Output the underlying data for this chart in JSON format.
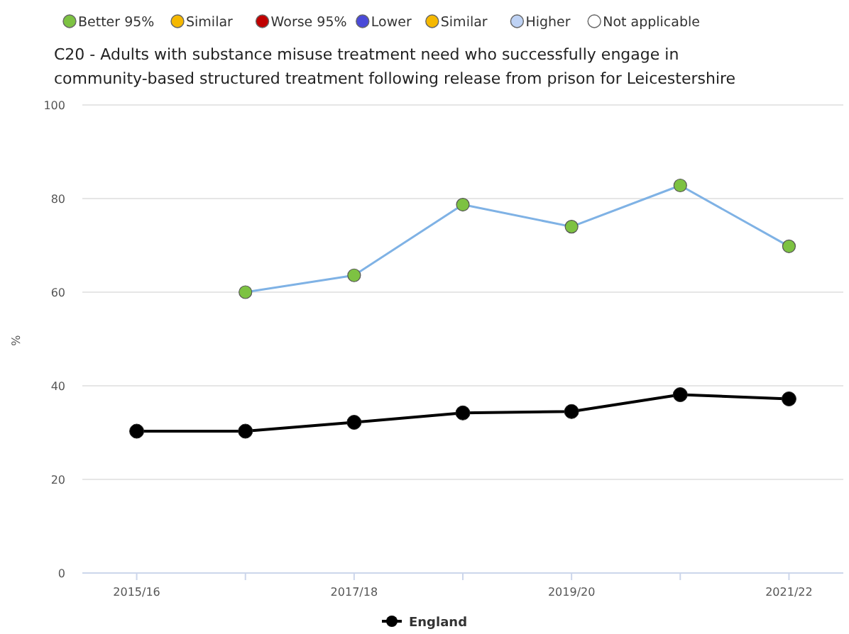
{
  "chart_data": {
    "type": "line",
    "title": "C20 - Adults with substance misuse treatment need who successfully engage in community-based structured treatment following release from prison for Leicestershire",
    "ylabel": "%",
    "categories": [
      "2015/16",
      null,
      "2017/18",
      null,
      "2019/20",
      null,
      "2021/22"
    ],
    "ylim": [
      0,
      100
    ],
    "yticks": [
      0,
      20,
      40,
      60,
      80,
      100
    ],
    "grid": "y",
    "legend": "top",
    "marker": "circle",
    "series": [
      {
        "type": "line",
        "color": "#7fb2e5",
        "marker": "none",
        "values": [
          null,
          60,
          63.6,
          78.7,
          74,
          82.8,
          69.8
        ]
      },
      {
        "type": "scatter",
        "name": "Better 95%",
        "color": "#7dc242",
        "values": [
          null,
          60,
          63.6,
          78.7,
          74,
          82.8,
          69.8
        ]
      },
      {
        "type": "scatter",
        "name": "Similar",
        "color": "#f5b800",
        "values": [
          null,
          null,
          null,
          null,
          null,
          null,
          null
        ]
      },
      {
        "type": "scatter",
        "name": "Worse 95%",
        "color": "#c00000",
        "values": [
          null,
          null,
          null,
          null,
          null,
          null,
          null
        ]
      },
      {
        "type": "scatter",
        "name": "Lower",
        "color": "#4a4ad8",
        "values": [
          null,
          null,
          null,
          null,
          null,
          null,
          null
        ]
      },
      {
        "type": "scatter",
        "name": "Similar",
        "color": "#f5b800",
        "values": [
          null,
          null,
          null,
          null,
          null,
          null,
          null
        ]
      },
      {
        "type": "scatter",
        "name": "Higher",
        "color": "#bed2f4",
        "values": [
          null,
          null,
          null,
          null,
          null,
          null,
          null
        ]
      },
      {
        "type": "scatter",
        "name": "Not applicable",
        "color": "#ffffff",
        "values": [
          null,
          null,
          null,
          null,
          null,
          null,
          null
        ]
      },
      {
        "type": "line",
        "name": "England",
        "color": "#000000",
        "values": [
          30.3,
          30.3,
          32.2,
          34.2,
          34.5,
          38.1,
          37.2
        ]
      }
    ]
  }
}
